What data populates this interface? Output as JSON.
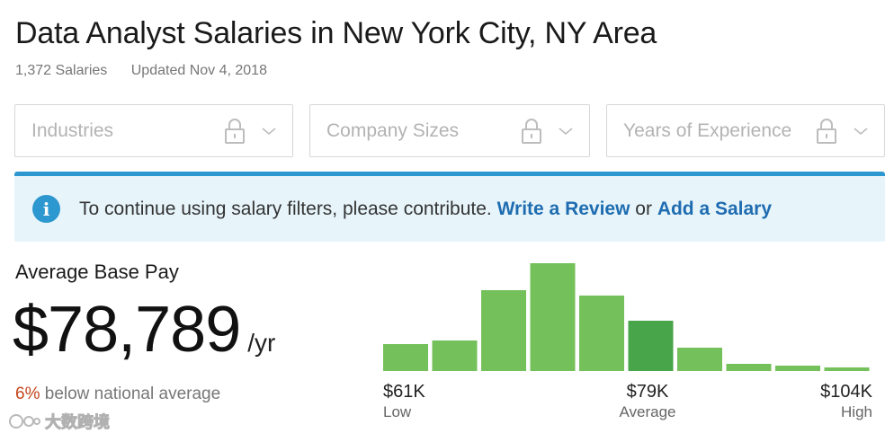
{
  "header": {
    "title": "Data Analyst Salaries in New York City, NY Area",
    "salary_count": "1,372 Salaries",
    "updated": "Updated Nov 4, 2018"
  },
  "filters": [
    {
      "label": "Industries",
      "locked": true
    },
    {
      "label": "Company Sizes",
      "locked": true
    },
    {
      "label": "Years of Experience",
      "locked": true
    }
  ],
  "notice": {
    "text": "To continue using salary filters, please contribute.",
    "link1": "Write a Review",
    "or": "or",
    "link2": "Add a Salary"
  },
  "pay": {
    "label": "Average Base Pay",
    "value": "$78,789",
    "unit": "/yr",
    "compare_pct": "6%",
    "compare_text": " below national average"
  },
  "chart_data": {
    "type": "bar",
    "values": [
      30,
      34,
      90,
      120,
      84,
      56,
      26,
      8,
      6,
      4
    ],
    "highlight_index": 5,
    "ylim": [
      0,
      120
    ],
    "x_labels": [
      {
        "value": "$61K",
        "caption": "Low"
      },
      {
        "value": "$79K",
        "caption": "Average"
      },
      {
        "value": "$104K",
        "caption": "High"
      }
    ]
  },
  "colors": {
    "bar": "#74c05a",
    "bar_highlight": "#48a54a",
    "accent": "#2d97cf",
    "link": "#1f6cb0",
    "negative": "#c4451c"
  },
  "watermark": {
    "text": "大数跨境"
  }
}
